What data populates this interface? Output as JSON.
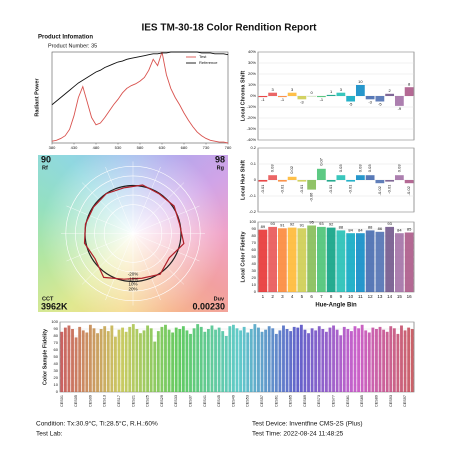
{
  "header": {
    "title": "IES TM-30-18 Color Rendition Report",
    "section": "Product Infomation",
    "product": "Product Number: 35"
  },
  "chart_data": [
    {
      "type": "line",
      "y_label": "Radiant Power",
      "x": [
        380,
        390,
        400,
        410,
        420,
        430,
        440,
        450,
        460,
        470,
        480,
        490,
        500,
        510,
        520,
        530,
        540,
        550,
        560,
        570,
        580,
        590,
        600,
        610,
        620,
        630,
        640,
        650,
        660,
        670,
        680,
        690,
        700,
        710,
        720,
        730,
        740,
        750,
        760,
        770,
        780
      ],
      "series": [
        {
          "name": "Test",
          "color": "#d9534f",
          "values": [
            0.02,
            0.03,
            0.05,
            0.08,
            0.15,
            0.3,
            0.5,
            0.62,
            0.45,
            0.28,
            0.2,
            0.22,
            0.28,
            0.35,
            0.42,
            0.48,
            0.55,
            0.6,
            0.63,
            0.65,
            0.68,
            0.72,
            0.8,
            0.92,
            0.85,
            1.0,
            0.75,
            0.6,
            0.5,
            0.42,
            0.33,
            0.25,
            0.18,
            0.12,
            0.08,
            0.05,
            0.03,
            0.02,
            0.01,
            0.01,
            0.0
          ]
        },
        {
          "name": "Reference",
          "color": "#111111",
          "values": [
            0.42,
            0.46,
            0.5,
            0.54,
            0.58,
            0.62,
            0.66,
            0.69,
            0.72,
            0.75,
            0.78,
            0.8,
            0.83,
            0.85,
            0.87,
            0.89,
            0.9,
            0.92,
            0.93,
            0.94,
            0.95,
            0.96,
            0.97,
            0.98,
            0.98,
            0.99,
            0.99,
            1.0,
            1.0,
            1.0,
            1.0,
            1.0,
            1.0,
            1.0,
            0.99,
            0.99,
            0.99,
            0.98,
            0.98,
            0.98,
            0.97
          ]
        }
      ],
      "xlim": [
        380,
        780
      ],
      "xticks": [
        380,
        430,
        480,
        530,
        580,
        630,
        680,
        730,
        780
      ],
      "ylim": [
        0,
        1
      ],
      "legend": "top-right"
    },
    {
      "type": "bar",
      "y_label": "Local Chroma Shift",
      "values": [
        -1,
        3,
        -1,
        3,
        -3,
        0,
        -1,
        1,
        3,
        -5,
        10,
        -3,
        -5,
        2,
        -9,
        8
      ],
      "colors": [
        "#e62828",
        "#e74b4b",
        "#fb812e",
        "#ffb529",
        "#cbca46",
        "#7eb94c",
        "#41c06d",
        "#009c7c",
        "#16bcb0",
        "#00a4bf",
        "#0085c3",
        "#3b62aa",
        "#4568ae",
        "#6a4e85",
        "#9d69a1",
        "#a74f81"
      ],
      "ylim": [
        -40,
        40
      ],
      "yticks": [
        {
          "value": -40,
          "label": "-40%"
        },
        {
          "value": -30,
          "label": "-30%"
        },
        {
          "value": -20,
          "label": "-20%"
        },
        {
          "value": -10,
          "label": "-10%"
        },
        {
          "value": 0,
          "label": "0%"
        },
        {
          "value": 10,
          "label": "10%"
        },
        {
          "value": 20,
          "label": "20%"
        },
        {
          "value": 30,
          "label": "30%"
        },
        {
          "value": 40,
          "label": "40%"
        }
      ],
      "grid": true,
      "data_labels": true
    },
    {
      "type": "bar",
      "y_label": "Local Hue Shift",
      "values": [
        -0.01,
        0.03,
        -0.01,
        0.02,
        -0.01,
        -0.06,
        0.07,
        -0.01,
        0.03,
        -0.01,
        0.03,
        0.03,
        -0.02,
        -0.01,
        0.03,
        -0.02
      ],
      "colors": [
        "#e62828",
        "#e74b4b",
        "#fb812e",
        "#ffb529",
        "#cbca46",
        "#7eb94c",
        "#41c06d",
        "#009c7c",
        "#16bcb0",
        "#00a4bf",
        "#0085c3",
        "#3b62aa",
        "#4568ae",
        "#6a4e85",
        "#9d69a1",
        "#a74f81"
      ],
      "ylim": [
        -0.2,
        0.2
      ],
      "yticks": [
        -0.2,
        -0.1,
        0,
        0.1,
        0.2
      ],
      "grid": true,
      "data_labels": true
    },
    {
      "type": "bar",
      "y_label": "Local Color Fidelity",
      "x_label": "Hue-Angle Bin",
      "categories": [
        "1",
        "2",
        "3",
        "4",
        "5",
        "6",
        "7",
        "8",
        "9",
        "10",
        "11",
        "12",
        "13",
        "14",
        "15",
        "16"
      ],
      "values": [
        89,
        93,
        91,
        92,
        91,
        95,
        93,
        92,
        88,
        84,
        84,
        88,
        86,
        93,
        84,
        85
      ],
      "colors": [
        "#e62828",
        "#e74b4b",
        "#fb812e",
        "#ffb529",
        "#cbca46",
        "#7eb94c",
        "#41c06d",
        "#009c7c",
        "#16bcb0",
        "#00a4bf",
        "#0085c3",
        "#3b62aa",
        "#4568ae",
        "#6a4e85",
        "#9d69a1",
        "#a74f81"
      ],
      "ylim": [
        0,
        100
      ],
      "yticks": [
        0,
        10,
        20,
        30,
        40,
        50,
        60,
        70,
        80,
        90,
        100
      ],
      "grid": true,
      "data_labels": true
    },
    {
      "type": "vector",
      "rf": 90,
      "rf_label": "Rf",
      "rg": 98,
      "rg_label": "Rg",
      "cct_label": "CCT",
      "cct": "3962K",
      "duv_label": "Duv",
      "duv": "0.00230",
      "ring_labels": [
        "-20%",
        "-10%",
        "10%",
        "20%"
      ]
    },
    {
      "type": "bar",
      "y_label": "Color Sample Fidelity",
      "categories": [
        "CES01",
        null,
        null,
        null,
        "CES05",
        null,
        null,
        null,
        "CES09",
        null,
        null,
        null,
        "CES13",
        null,
        null,
        null,
        "CES17",
        null,
        null,
        null,
        "CES21",
        null,
        null,
        null,
        "CES25",
        null,
        null,
        null,
        "CES29",
        null,
        null,
        null,
        "CES33",
        null,
        null,
        null,
        "CES37",
        null,
        null,
        null,
        "CES41",
        null,
        null,
        null,
        "CES45",
        null,
        null,
        null,
        "CES49",
        null,
        null,
        null,
        "CES53",
        null,
        null,
        null,
        "CES57",
        null,
        null,
        null,
        "CES61",
        null,
        null,
        null,
        "CES65",
        null,
        null,
        null,
        "CES69",
        null,
        null,
        null,
        "CES73",
        null,
        null,
        null,
        "CES77",
        null,
        null,
        null,
        "CES81",
        null,
        null,
        null,
        "CES85",
        null,
        null,
        null,
        "CES89",
        null,
        null,
        null,
        "CES93",
        null,
        null,
        null,
        "CES97",
        null,
        null
      ],
      "values": [
        86,
        92,
        95,
        90,
        78,
        93,
        88,
        85,
        96,
        91,
        84,
        90,
        94,
        87,
        95,
        79,
        89,
        92,
        86,
        93,
        97,
        90,
        84,
        88,
        95,
        91,
        72,
        87,
        93,
        96,
        89,
        85,
        92,
        90,
        94,
        88,
        83,
        91,
        97,
        93,
        86,
        90,
        95,
        89,
        92,
        87,
        80,
        94,
        96,
        91,
        88,
        93,
        85,
        90,
        97,
        92,
        86,
        89,
        94,
        91,
        83,
        88,
        95,
        90,
        87,
        93,
        92,
        96,
        89,
        84,
        91,
        88,
        94,
        90,
        86,
        92,
        95,
        89,
        81,
        93,
        90,
        87,
        94,
        91,
        96,
        88,
        85,
        92,
        90,
        93,
        89,
        86,
        94,
        91,
        83,
        95,
        88,
        92,
        90
      ],
      "ylim": [
        0,
        100
      ],
      "yticks": [
        0,
        10,
        20,
        30,
        40,
        50,
        60,
        70,
        80,
        90,
        100
      ],
      "grid": true
    }
  ],
  "footer": {
    "condition": "Condition: Tx:30.9°C, Ti:28.5°C, R.H.:60%",
    "device": "Test Device: Inventfine CMS-2S (Plus)",
    "lab": "Test Lab:",
    "time": "Test Time: 2022-08-24 11:48:25"
  }
}
